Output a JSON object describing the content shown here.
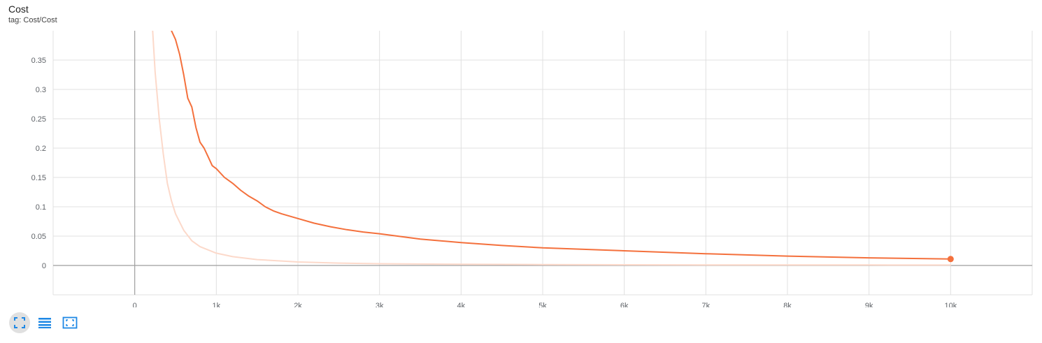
{
  "card": {
    "title": "Cost",
    "tag": "tag: Cost/Cost"
  },
  "toolbar": {
    "buttons": [
      {
        "icon": "fit-domain-icon",
        "active": true
      },
      {
        "icon": "data-selection-list-icon",
        "active": false
      },
      {
        "icon": "fit-to-data-icon",
        "active": false
      }
    ]
  },
  "chart_data": {
    "type": "line",
    "title": "Cost",
    "subtitle": "tag: Cost/Cost",
    "xlabel": "",
    "ylabel": "",
    "xlim": [
      -1000,
      11000
    ],
    "ylim": [
      -0.05,
      0.4
    ],
    "x_ticks": [
      0,
      1000,
      2000,
      3000,
      4000,
      5000,
      6000,
      7000,
      8000,
      9000,
      10000
    ],
    "x_tick_labels": [
      "0",
      "1k",
      "2k",
      "3k",
      "4k",
      "5k",
      "6k",
      "7k",
      "8k",
      "9k",
      "10k"
    ],
    "y_ticks": [
      0,
      0.05,
      0.1,
      0.15,
      0.2,
      0.25,
      0.3,
      0.35
    ],
    "y_tick_labels": [
      "0",
      "0.05",
      "0.1",
      "0.15",
      "0.2",
      "0.25",
      "0.3",
      "0.35"
    ],
    "grid": true,
    "colors": {
      "smoothed": "#f4703c",
      "raw": "#fcd9ca",
      "grid": "#e0e0e0",
      "axis": "#9e9e9e"
    },
    "series": [
      {
        "role": "smoothed",
        "x": [
          450,
          500,
          550,
          600,
          650,
          700,
          750,
          800,
          850,
          900,
          950,
          1000,
          1100,
          1200,
          1300,
          1400,
          1500,
          1600,
          1700,
          1800,
          2000,
          2200,
          2400,
          2600,
          2800,
          3000,
          3500,
          4000,
          4500,
          5000,
          6000,
          7000,
          8000,
          9000,
          10000
        ],
        "y": [
          0.4,
          0.385,
          0.36,
          0.325,
          0.285,
          0.27,
          0.235,
          0.21,
          0.2,
          0.185,
          0.17,
          0.165,
          0.15,
          0.14,
          0.128,
          0.118,
          0.11,
          0.1,
          0.093,
          0.088,
          0.08,
          0.072,
          0.066,
          0.061,
          0.057,
          0.054,
          0.045,
          0.039,
          0.034,
          0.03,
          0.025,
          0.02,
          0.016,
          0.013,
          0.011
        ]
      },
      {
        "role": "raw",
        "x": [
          220,
          250,
          300,
          350,
          400,
          450,
          500,
          600,
          700,
          800,
          1000,
          1200,
          1500,
          2000,
          2500,
          3000,
          4000,
          5000,
          6000,
          7000,
          8000,
          9000,
          10000
        ],
        "y": [
          0.4,
          0.33,
          0.25,
          0.19,
          0.14,
          0.11,
          0.088,
          0.06,
          0.042,
          0.032,
          0.021,
          0.015,
          0.01,
          0.006,
          0.004,
          0.003,
          0.002,
          0.0015,
          0.0012,
          0.001,
          0.0009,
          0.0008,
          0.0007
        ]
      }
    ],
    "last_point": {
      "x": 10000,
      "y": 0.011
    }
  }
}
